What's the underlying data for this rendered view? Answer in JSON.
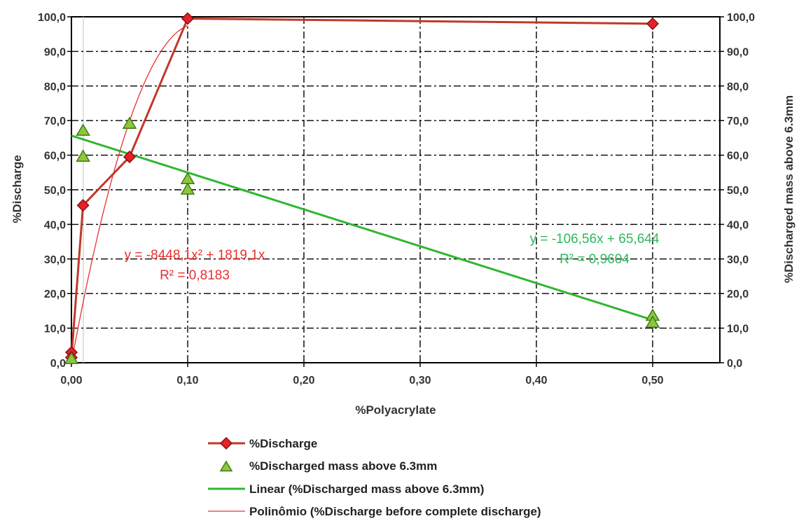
{
  "chart_data": {
    "type": "scatter",
    "xlabel": "%Polyacrylate",
    "ylabel": "%Discharge",
    "y2label": "%Discharged mass above 6.3mm",
    "xlim": [
      0,
      0.55
    ],
    "ylim": [
      0,
      100
    ],
    "y2lim": [
      0,
      100
    ],
    "x_ticks": [
      "0,00",
      "0,10",
      "0,20",
      "0,30",
      "0,40",
      "0,50"
    ],
    "y_ticks": [
      "0,0",
      "10,0",
      "20,0",
      "30,0",
      "40,0",
      "50,0",
      "60,0",
      "70,0",
      "80,0",
      "90,0",
      "100,0"
    ],
    "grid": true,
    "legend_position": "bottom",
    "series": [
      {
        "name": "%Discharge",
        "kind": "line-marker",
        "marker": "diamond",
        "color": "#c0392b",
        "x": [
          0,
          0,
          0.01,
          0.05,
          0.1,
          0.5
        ],
        "y": [
          3,
          1.5,
          45.5,
          59.5,
          99.5,
          98
        ]
      },
      {
        "name": "%Discharged mass above 6.3mm",
        "kind": "scatter",
        "marker": "triangle",
        "color": "#8dc63f",
        "x": [
          0,
          0.01,
          0.01,
          0.05,
          0.1,
          0.1,
          0.5,
          0.5
        ],
        "y": [
          1,
          67,
          59.5,
          69,
          53,
          50,
          13.5,
          11.5
        ]
      },
      {
        "name": "Linear (%Discharged mass above 6.3mm)",
        "kind": "trend-linear",
        "color": "#2eb82e",
        "x_range": [
          0,
          0.5
        ],
        "coefficients": {
          "a": -106.56,
          "b": 65.644
        }
      },
      {
        "name": "Polinômio (%Discharge before complete discharge)",
        "kind": "trend-poly2",
        "color": "#e8312f",
        "x_range": [
          0,
          0.1
        ],
        "coefficients": {
          "a": -8448.1,
          "b": 1819.1
        }
      }
    ],
    "annotations": [
      {
        "id": "poly",
        "line1": "y = -8448,1x² + 1819,1x",
        "line2": "R² = 0,8183",
        "color": "#e8312f"
      },
      {
        "id": "linear",
        "line1": "y = -106,56x + 65,644",
        "line2": "R² = 0,9604",
        "color": "#2eb85c"
      }
    ]
  }
}
